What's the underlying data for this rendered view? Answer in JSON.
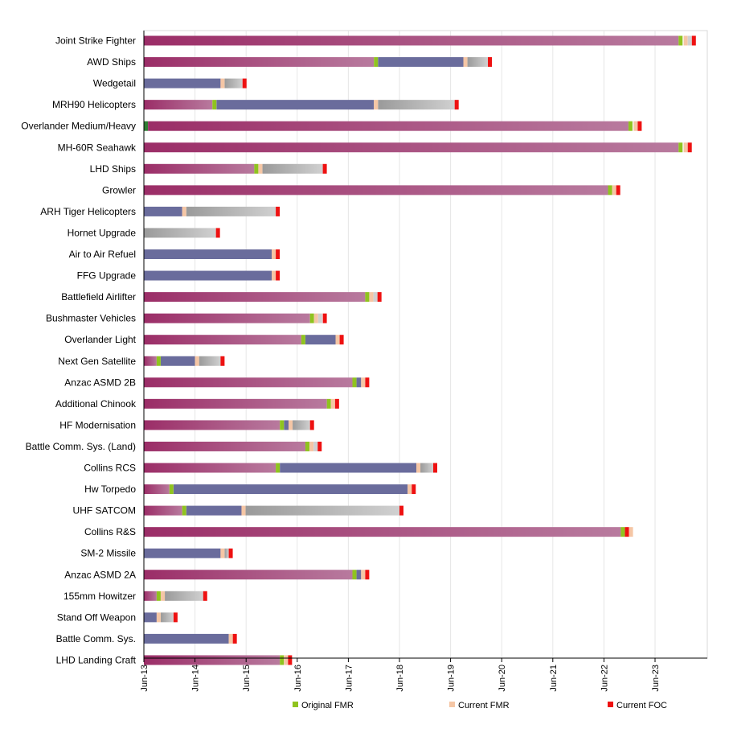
{
  "chart_data": {
    "type": "bar",
    "orientation": "horizontal",
    "stacked": true,
    "grid": true,
    "xaxis": {
      "ticks": [
        "Jun-13",
        "Jun-14",
        "Jun-15",
        "Jun-16",
        "Jun-17",
        "Jun-18",
        "Jun-19",
        "Jun-20",
        "Jun-21",
        "Jun-22",
        "Jun-23"
      ],
      "range_years": [
        2013.0,
        2024.0
      ]
    },
    "legend": {
      "position": "bottom",
      "entries": [
        {
          "label": "Original FMR",
          "color": "#8fc31f"
        },
        {
          "label": "Current FMR",
          "color": "#f5c6a5"
        },
        {
          "label": "Current FOC",
          "color": "#ee1111"
        }
      ]
    },
    "colors": {
      "phase_1": "#9b2d67",
      "phase_1_light": "#b87a9e",
      "phase_2": "#6a6c9c",
      "phase_3": "#9a9a9a",
      "phase_3_light": "#d0d0d0",
      "original_fmr": "#8fc31f",
      "current_fmr": "#f5c6a5",
      "current_foc": "#ee1111",
      "other_marker": "#2e7d32"
    },
    "categories": [
      "Joint Strike Fighter",
      "AWD Ships",
      "Wedgetail",
      "MRH90 Helicopters",
      "Overlander Medium/Heavy",
      "MH-60R Seahawk",
      "LHD Ships",
      "Growler",
      "ARH Tiger Helicopters",
      "Hornet Upgrade",
      "Air to Air Refuel",
      "FFG Upgrade",
      "Battlefield Airlifter",
      "Bushmaster Vehicles",
      "Overlander Light",
      "Next Gen Satellite",
      "Anzac ASMD 2B",
      "Additional Chinook",
      "HF Modernisation",
      "Battle Comm. Sys. (Land)",
      "Collins RCS",
      "Hw Torpedo",
      "UHF SATCOM",
      "Collins R&S",
      "SM-2 Missile",
      "Anzac ASMD 2A",
      "155mm Howitzer",
      "Stand Off Weapon",
      "Battle Comm. Sys.",
      "LHD Landing Craft"
    ],
    "bars": [
      {
        "segments": [
          {
            "p": 1,
            "s": 2013.0,
            "e": 2023.46
          }
        ],
        "markers": [
          {
            "t": "o",
            "x": 2023.46
          },
          {
            "t": "c",
            "x": 2023.56
          },
          {
            "t": "g",
            "x": 2023.64
          },
          {
            "t": "f",
            "x": 2023.72
          }
        ]
      },
      {
        "segments": [
          {
            "p": 1,
            "s": 2013.0,
            "e": 2017.5
          },
          {
            "p": 2,
            "s": 2017.58,
            "e": 2019.25
          },
          {
            "p": 3,
            "s": 2019.33,
            "e": 2019.73
          }
        ],
        "markers": [
          {
            "t": "o",
            "x": 2017.5
          },
          {
            "t": "c",
            "x": 2019.25
          },
          {
            "t": "f",
            "x": 2019.73
          }
        ]
      },
      {
        "segments": [
          {
            "p": 2,
            "s": 2013.0,
            "e": 2014.5
          },
          {
            "p": 3,
            "s": 2014.58,
            "e": 2014.93
          }
        ],
        "markers": [
          {
            "t": "c",
            "x": 2014.5
          },
          {
            "t": "f",
            "x": 2014.93
          }
        ]
      },
      {
        "segments": [
          {
            "p": 1,
            "s": 2013.0,
            "e": 2014.34
          },
          {
            "p": 2,
            "s": 2014.42,
            "e": 2017.5
          },
          {
            "p": 3,
            "s": 2017.58,
            "e": 2019.08
          }
        ],
        "markers": [
          {
            "t": "o",
            "x": 2014.34
          },
          {
            "t": "c",
            "x": 2017.5
          },
          {
            "t": "f",
            "x": 2019.08
          }
        ]
      },
      {
        "segments": [
          {
            "p": 1,
            "s": 2013.08,
            "e": 2022.48
          }
        ],
        "markers": [
          {
            "t": "d",
            "x": 2013.0
          },
          {
            "t": "o",
            "x": 2022.48
          },
          {
            "t": "c",
            "x": 2022.58
          },
          {
            "t": "f",
            "x": 2022.66
          }
        ]
      },
      {
        "segments": [
          {
            "p": 1,
            "s": 2013.0,
            "e": 2023.46
          }
        ],
        "markers": [
          {
            "t": "o",
            "x": 2023.46
          },
          {
            "t": "c",
            "x": 2023.56
          },
          {
            "t": "f",
            "x": 2023.64
          }
        ]
      },
      {
        "segments": [
          {
            "p": 1,
            "s": 2013.0,
            "e": 2015.16
          },
          {
            "p": 3,
            "s": 2015.32,
            "e": 2016.5
          }
        ],
        "markers": [
          {
            "t": "o",
            "x": 2015.16
          },
          {
            "t": "c",
            "x": 2015.24
          },
          {
            "t": "f",
            "x": 2016.5
          }
        ]
      },
      {
        "segments": [
          {
            "p": 1,
            "s": 2013.0,
            "e": 2022.08
          }
        ],
        "markers": [
          {
            "t": "o",
            "x": 2022.08
          },
          {
            "t": "c",
            "x": 2022.16
          },
          {
            "t": "f",
            "x": 2022.24
          }
        ]
      },
      {
        "segments": [
          {
            "p": 2,
            "s": 2013.0,
            "e": 2013.75
          },
          {
            "p": 3,
            "s": 2013.83,
            "e": 2015.58
          }
        ],
        "markers": [
          {
            "t": "c",
            "x": 2013.75
          },
          {
            "t": "f",
            "x": 2015.58
          }
        ]
      },
      {
        "segments": [
          {
            "p": 3,
            "s": 2013.0,
            "e": 2014.41
          }
        ],
        "markers": [
          {
            "t": "f",
            "x": 2014.41
          }
        ]
      },
      {
        "segments": [
          {
            "p": 2,
            "s": 2013.0,
            "e": 2015.5
          }
        ],
        "markers": [
          {
            "t": "c",
            "x": 2015.5
          },
          {
            "t": "f",
            "x": 2015.58
          }
        ]
      },
      {
        "segments": [
          {
            "p": 2,
            "s": 2013.0,
            "e": 2015.5
          }
        ],
        "markers": [
          {
            "t": "c",
            "x": 2015.5
          },
          {
            "t": "f",
            "x": 2015.58
          }
        ]
      },
      {
        "segments": [
          {
            "p": 1,
            "s": 2013.0,
            "e": 2017.33
          }
        ],
        "markers": [
          {
            "t": "o",
            "x": 2017.33
          },
          {
            "t": "c",
            "x": 2017.41
          },
          {
            "t": "g",
            "x": 2017.49
          },
          {
            "t": "f",
            "x": 2017.57
          }
        ]
      },
      {
        "segments": [
          {
            "p": 1,
            "s": 2013.0,
            "e": 2016.25
          }
        ],
        "markers": [
          {
            "t": "o",
            "x": 2016.25
          },
          {
            "t": "c",
            "x": 2016.33
          },
          {
            "t": "g",
            "x": 2016.41
          },
          {
            "t": "f",
            "x": 2016.5
          }
        ]
      },
      {
        "segments": [
          {
            "p": 1,
            "s": 2013.0,
            "e": 2016.08
          },
          {
            "p": 2,
            "s": 2016.16,
            "e": 2016.75
          }
        ],
        "markers": [
          {
            "t": "o",
            "x": 2016.08
          },
          {
            "t": "c",
            "x": 2016.75
          },
          {
            "t": "f",
            "x": 2016.83
          }
        ]
      },
      {
        "segments": [
          {
            "p": 1,
            "s": 2013.0,
            "e": 2013.25
          },
          {
            "p": 2,
            "s": 2013.33,
            "e": 2014.0
          },
          {
            "p": 3,
            "s": 2014.08,
            "e": 2014.5
          }
        ],
        "markers": [
          {
            "t": "o",
            "x": 2013.25
          },
          {
            "t": "c",
            "x": 2014.0
          },
          {
            "t": "f",
            "x": 2014.5
          }
        ]
      },
      {
        "segments": [
          {
            "p": 1,
            "s": 2013.0,
            "e": 2017.08
          },
          {
            "p": 2,
            "s": 2017.16,
            "e": 2017.25
          }
        ],
        "markers": [
          {
            "t": "o",
            "x": 2017.08
          },
          {
            "t": "c",
            "x": 2017.25
          },
          {
            "t": "f",
            "x": 2017.33
          }
        ]
      },
      {
        "segments": [
          {
            "p": 1,
            "s": 2013.0,
            "e": 2016.58
          }
        ],
        "markers": [
          {
            "t": "o",
            "x": 2016.58
          },
          {
            "t": "c",
            "x": 2016.66
          },
          {
            "t": "f",
            "x": 2016.74
          }
        ]
      },
      {
        "segments": [
          {
            "p": 1,
            "s": 2013.0,
            "e": 2015.66
          },
          {
            "p": 2,
            "s": 2015.74,
            "e": 2015.83
          },
          {
            "p": 3,
            "s": 2015.91,
            "e": 2016.25
          }
        ],
        "markers": [
          {
            "t": "o",
            "x": 2015.66
          },
          {
            "t": "c",
            "x": 2015.83
          },
          {
            "t": "f",
            "x": 2016.25
          }
        ]
      },
      {
        "segments": [
          {
            "p": 1,
            "s": 2013.0,
            "e": 2016.16
          }
        ],
        "markers": [
          {
            "t": "o",
            "x": 2016.16
          },
          {
            "t": "c",
            "x": 2016.24
          },
          {
            "t": "g",
            "x": 2016.32
          },
          {
            "t": "f",
            "x": 2016.4
          }
        ]
      },
      {
        "segments": [
          {
            "p": 1,
            "s": 2013.0,
            "e": 2015.58
          },
          {
            "p": 2,
            "s": 2015.66,
            "e": 2018.33
          },
          {
            "p": 3,
            "s": 2018.41,
            "e": 2018.66
          }
        ],
        "markers": [
          {
            "t": "o",
            "x": 2015.58
          },
          {
            "t": "c",
            "x": 2018.33
          },
          {
            "t": "f",
            "x": 2018.66
          }
        ]
      },
      {
        "segments": [
          {
            "p": 1,
            "s": 2013.0,
            "e": 2013.5
          },
          {
            "p": 2,
            "s": 2013.58,
            "e": 2018.16
          }
        ],
        "markers": [
          {
            "t": "o",
            "x": 2013.5
          },
          {
            "t": "c",
            "x": 2018.16
          },
          {
            "t": "f",
            "x": 2018.24
          }
        ]
      },
      {
        "segments": [
          {
            "p": 1,
            "s": 2013.0,
            "e": 2013.75
          },
          {
            "p": 2,
            "s": 2013.83,
            "e": 2014.91
          },
          {
            "p": 3,
            "s": 2014.99,
            "e": 2018.0
          }
        ],
        "markers": [
          {
            "t": "o",
            "x": 2013.75
          },
          {
            "t": "c",
            "x": 2014.91
          },
          {
            "t": "f",
            "x": 2018.0
          }
        ]
      },
      {
        "segments": [
          {
            "p": 1,
            "s": 2013.0,
            "e": 2022.33
          }
        ],
        "markers": [
          {
            "t": "o",
            "x": 2022.33
          },
          {
            "t": "f",
            "x": 2022.41
          },
          {
            "t": "c",
            "x": 2022.49
          }
        ]
      },
      {
        "segments": [
          {
            "p": 2,
            "s": 2013.0,
            "e": 2014.5
          },
          {
            "p": 3,
            "s": 2014.58,
            "e": 2014.66
          }
        ],
        "markers": [
          {
            "t": "c",
            "x": 2014.5
          },
          {
            "t": "f",
            "x": 2014.66
          }
        ]
      },
      {
        "segments": [
          {
            "p": 1,
            "s": 2013.0,
            "e": 2017.08
          },
          {
            "p": 2,
            "s": 2017.16,
            "e": 2017.25
          }
        ],
        "markers": [
          {
            "t": "o",
            "x": 2017.08
          },
          {
            "t": "c",
            "x": 2017.25
          },
          {
            "t": "f",
            "x": 2017.33
          }
        ]
      },
      {
        "segments": [
          {
            "p": 1,
            "s": 2013.0,
            "e": 2013.25
          },
          {
            "p": 3,
            "s": 2013.41,
            "e": 2014.16
          }
        ],
        "markers": [
          {
            "t": "o",
            "x": 2013.25
          },
          {
            "t": "c",
            "x": 2013.33
          },
          {
            "t": "f",
            "x": 2014.16
          }
        ]
      },
      {
        "segments": [
          {
            "p": 2,
            "s": 2013.0,
            "e": 2013.25
          },
          {
            "p": 3,
            "s": 2013.33,
            "e": 2013.58
          }
        ],
        "markers": [
          {
            "t": "c",
            "x": 2013.25
          },
          {
            "t": "f",
            "x": 2013.58
          }
        ]
      },
      {
        "segments": [
          {
            "p": 2,
            "s": 2013.0,
            "e": 2014.66
          }
        ],
        "markers": [
          {
            "t": "c",
            "x": 2014.66
          },
          {
            "t": "f",
            "x": 2014.74
          }
        ]
      },
      {
        "segments": [
          {
            "p": 1,
            "s": 2013.0,
            "e": 2015.66
          }
        ],
        "markers": [
          {
            "t": "o",
            "x": 2015.66
          },
          {
            "t": "c",
            "x": 2015.74
          },
          {
            "t": "f",
            "x": 2015.82
          }
        ]
      }
    ]
  }
}
